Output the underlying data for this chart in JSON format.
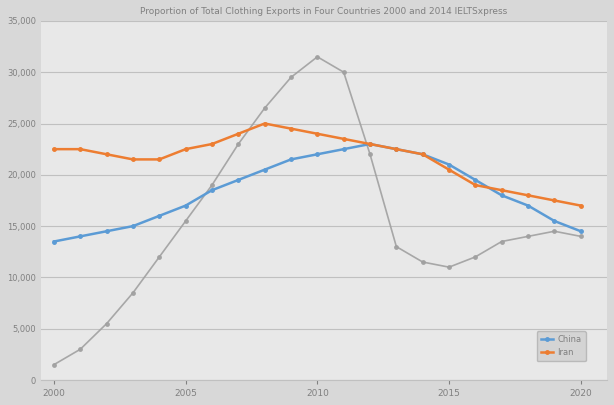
{
  "title": "Proportion of Total Clothing Exports in Four Countries 2000 and 2014 IELTSxpress",
  "years": [
    2000,
    2001,
    2002,
    2003,
    2004,
    2005,
    2006,
    2007,
    2008,
    2009,
    2010,
    2011,
    2012,
    2013,
    2014,
    2015,
    2016,
    2017,
    2018,
    2019,
    2020
  ],
  "gray_vals": [
    1500,
    3000,
    5500,
    8500,
    12000,
    15500,
    19000,
    23000,
    26500,
    29500,
    31500,
    30000,
    22000,
    13000,
    11500,
    11000,
    12000,
    13500,
    14000,
    14500,
    14000
  ],
  "blue_vals": [
    13500,
    14000,
    14500,
    15000,
    16000,
    17000,
    18500,
    19500,
    20500,
    21500,
    22000,
    22500,
    23000,
    22500,
    22000,
    21000,
    19500,
    18000,
    17000,
    15500,
    14500
  ],
  "orange_vals": [
    22500,
    22500,
    22000,
    21500,
    21500,
    22500,
    23000,
    24000,
    25000,
    24500,
    24000,
    23500,
    23000,
    22500,
    22000,
    20500,
    19000,
    18500,
    18000,
    17500,
    17000
  ],
  "legend_china": "China",
  "legend_iran": "Iran",
  "fig_bg": "#d8d8d8",
  "plot_bg": "#e8e8e8",
  "grid_color": "#c0c0c0",
  "line_gray": "#a0a0a0",
  "line_blue": "#5b9bd5",
  "line_orange": "#ed7d31",
  "title_color": "#808080",
  "tick_color": "#808080",
  "spine_color": "#c0c0c0",
  "ylim": [
    0,
    35000
  ],
  "yticks": [
    0,
    5000,
    10000,
    15000,
    20000,
    25000,
    30000,
    35000
  ],
  "xticks": [
    2000,
    2005,
    2010,
    2015,
    2020
  ],
  "xlim": [
    1999.5,
    2021
  ]
}
